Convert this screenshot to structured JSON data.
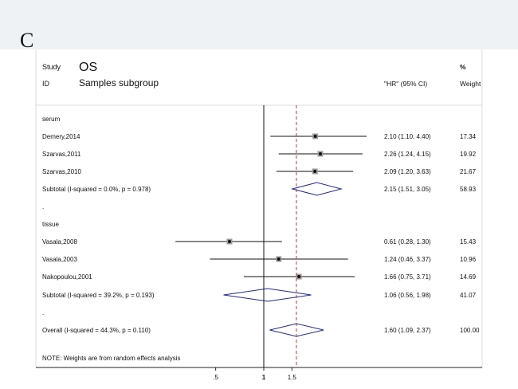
{
  "panel_label": "C",
  "header": {
    "study_label": "Study",
    "id_label": "ID",
    "title": "OS",
    "subtitle": "Samples subgroup",
    "hr_col": "\"HR\" (95% CI)",
    "pct_col": "%",
    "weight_col": "Weight"
  },
  "footnote": "NOTE: Weights are from random effects analysis",
  "chart_data": {
    "type": "forest",
    "title": "OS",
    "subtitle": "Samples subgroup",
    "x_ticks": [
      ".5",
      "1",
      "1.5"
    ],
    "null_line": 1,
    "overall_line": 1.6,
    "rows": [
      {
        "kind": "group",
        "label": "serum"
      },
      {
        "kind": "study",
        "label": "Demery,2014",
        "hr": 2.1,
        "lo": 1.1,
        "hi": 4.4,
        "ci_text": "2.10 (1.10, 4.40)",
        "weight": "17.34"
      },
      {
        "kind": "study",
        "label": "Szarvas,2011",
        "hr": 2.26,
        "lo": 1.24,
        "hi": 4.15,
        "ci_text": "2.26 (1.24, 4.15)",
        "weight": "19.92"
      },
      {
        "kind": "study",
        "label": "Szarvas,2010",
        "hr": 2.09,
        "lo": 1.2,
        "hi": 3.63,
        "ci_text": "2.09 (1.20, 3.63)",
        "weight": "21.67"
      },
      {
        "kind": "subtotal",
        "label": "Subtotal  (I-squared = 0.0%, p = 0.978)",
        "hr": 2.15,
        "lo": 1.51,
        "hi": 3.05,
        "ci_text": "2.15 (1.51, 3.05)",
        "weight": "58.93"
      },
      {
        "kind": "dot",
        "label": "."
      },
      {
        "kind": "group",
        "label": "tissue"
      },
      {
        "kind": "study",
        "label": "Vasala,2008",
        "hr": 0.61,
        "lo": 0.28,
        "hi": 1.3,
        "ci_text": "0.61 (0.28, 1.30)",
        "weight": "15.43"
      },
      {
        "kind": "study",
        "label": "Vasala,2003",
        "hr": 1.24,
        "lo": 0.46,
        "hi": 3.37,
        "ci_text": "1.24 (0.46, 3.37)",
        "weight": "10.96"
      },
      {
        "kind": "study",
        "label": "Nakopoulou,2001",
        "hr": 1.66,
        "lo": 0.75,
        "hi": 3.71,
        "ci_text": "1.66 (0.75, 3.71)",
        "weight": "14.69"
      },
      {
        "kind": "subtotal",
        "label": "Subtotal  (I-squared = 39.2%, p = 0.193)",
        "hr": 1.06,
        "lo": 0.56,
        "hi": 1.98,
        "ci_text": "1.06 (0.56, 1.98)",
        "weight": "41.07"
      },
      {
        "kind": "dot",
        "label": "."
      },
      {
        "kind": "overall",
        "label": "Overall  (I-squared = 44.3%, p = 0.110)",
        "hr": 1.6,
        "lo": 1.09,
        "hi": 2.37,
        "ci_text": "1.60 (1.09, 2.37)",
        "weight": "100.00"
      }
    ]
  }
}
